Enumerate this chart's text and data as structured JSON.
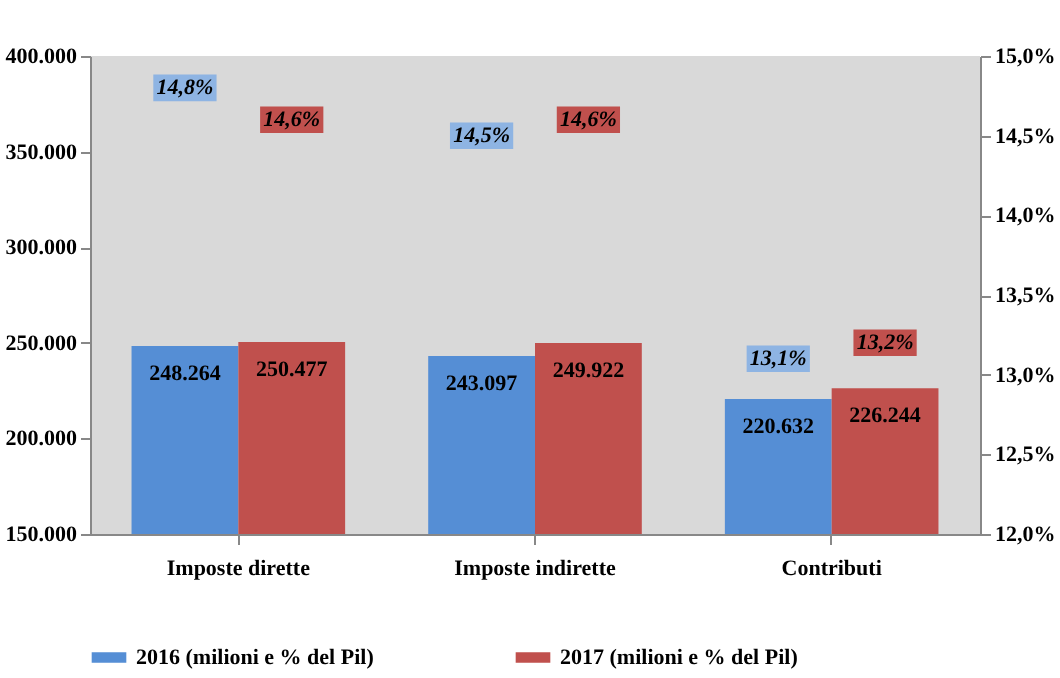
{
  "chart_data": {
    "type": "bar",
    "categories": [
      "Imposte dirette",
      "Imposte indirette",
      "Contributi"
    ],
    "series": [
      {
        "name": "2016 (milioni e % del Pil)",
        "color": "#558ed5",
        "values": [
          248264,
          243097,
          220632
        ],
        "value_labels": [
          "248.264",
          "243.097",
          "220.632"
        ]
      },
      {
        "name": "2017 (milioni e % del Pil)",
        "color": "#c0504d",
        "values": [
          250477,
          249922,
          226244
        ],
        "value_labels": [
          "250.477",
          "249.922",
          "226.244"
        ]
      },
      {
        "type": "scatter",
        "axis": "y2",
        "color": "#8eb4e3",
        "values": [
          14.8,
          14.5,
          13.1
        ],
        "value_labels": [
          "14,8%",
          "14,5%",
          "13,1%"
        ]
      },
      {
        "type": "scatter",
        "axis": "y2",
        "color": "#c0504d",
        "values": [
          14.6,
          14.6,
          13.2
        ],
        "value_labels": [
          "14,6%",
          "14,6%",
          "13,2%"
        ]
      }
    ],
    "ylim": [
      150000,
      400000
    ],
    "yticks": [
      {
        "value": 150000,
        "label": "150.000"
      },
      {
        "value": 200000,
        "label": "200.000"
      },
      {
        "value": 250000,
        "label": "250.000"
      },
      {
        "value": 300000,
        "label": "300.000"
      },
      {
        "value": 350000,
        "label": "350.000"
      },
      {
        "value": 400000,
        "label": "400.000"
      }
    ],
    "y2lim": [
      12,
      15
    ],
    "y2ticks": [
      {
        "value": 12,
        "label": "12,0%"
      },
      {
        "value": 12.5,
        "label": "12,5%"
      },
      {
        "value": 13,
        "label": "13,0%"
      },
      {
        "value": 13.5,
        "label": "13,5%"
      },
      {
        "value": 14,
        "label": "14,0%"
      },
      {
        "value": 14.5,
        "label": "14,5%"
      },
      {
        "value": 15,
        "label": "15,0%"
      }
    ],
    "grid": false,
    "legend": "bottom"
  }
}
